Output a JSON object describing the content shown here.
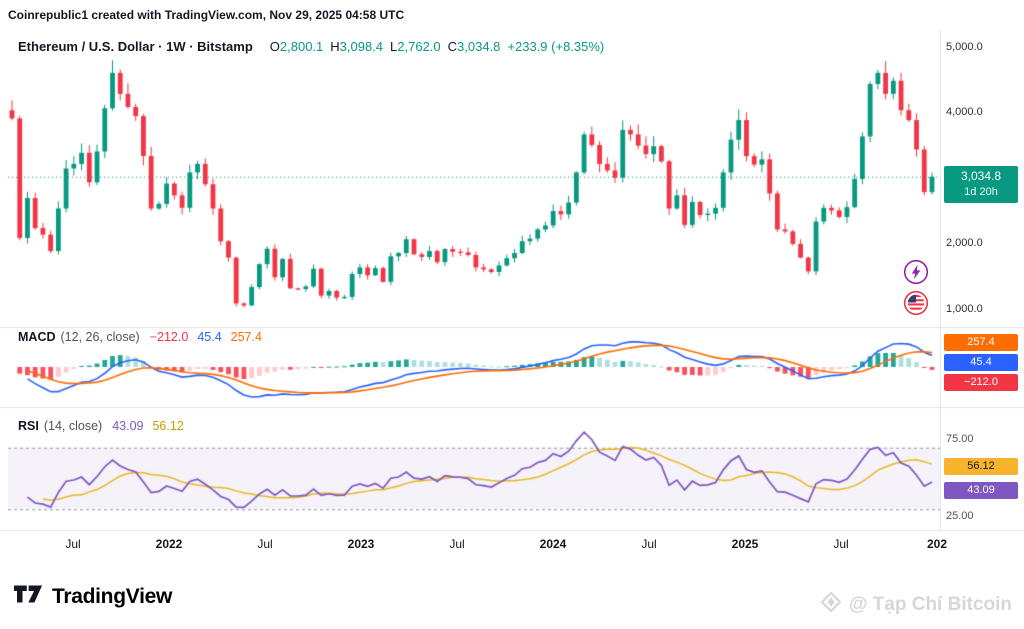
{
  "attribution": "Coinrepublic1 created with TradingView.com, Nov 29, 2025 04:58 UTC",
  "main_chart": {
    "symbol_title": "Ethereum / U.S. Dollar · 1W · Bitstamp",
    "ohlc": {
      "open_label": "O",
      "open": "2,800.1",
      "high_label": "H",
      "high": "3,098.4",
      "low_label": "L",
      "low": "2,762.0",
      "close_label": "C",
      "close": "3,034.8",
      "change": "+233.9 (+8.35%)"
    },
    "price_axis_labels": [
      "5,000.0",
      "4,000.0",
      "2,000.0",
      "1,000.0"
    ],
    "price_badge": {
      "price": "3,034.8",
      "countdown": "1d 20h"
    }
  },
  "macd": {
    "title": "MACD",
    "params": "(12, 26, close)",
    "hist_value": "−212.0",
    "macd_value": "45.4",
    "signal_value": "257.4"
  },
  "rsi": {
    "title": "RSI",
    "params": "(14, close)",
    "rsi_value": "43.09",
    "ma_value": "56.12",
    "axis_labels": [
      "75.00",
      "25.00"
    ]
  },
  "time_axis": {
    "labels": [
      "Jul",
      "2022",
      "Jul",
      "2023",
      "Jul",
      "2024",
      "Jul",
      "2025",
      "Jul",
      "202"
    ]
  },
  "footer": {
    "logo_text": "TradingView",
    "watermark": "@ Tạp Chí Bitcoin"
  },
  "colors": {
    "up": "#089981",
    "down": "#F23645",
    "macd_line": "#2962FF",
    "signal_line": "#FF6D00",
    "hist_pos": "#26A69A",
    "hist_pos_weak": "#B2DFDB",
    "hist_neg": "#F7525F",
    "hist_neg_weak": "#FCCBCD",
    "rsi_line": "#7E57C2",
    "rsi_ma": "#E8B923",
    "band_fill": "rgba(126,87,194,0.08)",
    "separator": "#E0E3EB",
    "price_line": "#089981"
  },
  "chart_data": {
    "type": "candlestick",
    "title": "Ethereum / U.S. Dollar weekly (Bitstamp) with MACD and RSI",
    "symbol": "ETH/USD",
    "timeframe": "1W",
    "x_range": [
      "2021-05",
      "2025-11-29"
    ],
    "x_ticks": [
      "Jul",
      "2022",
      "Jul",
      "2023",
      "Jul",
      "2024",
      "Jul",
      "2025",
      "Jul",
      "202"
    ],
    "price_axis_range": [
      700,
      5100
    ],
    "price_axis_ticks": [
      5000,
      4000,
      3000,
      2000,
      1000
    ],
    "first_open": 4050,
    "closes": [
      3925,
      2100,
      2710,
      2250,
      2150,
      1900,
      2550,
      3160,
      3230,
      3400,
      2950,
      3420,
      4080,
      4620,
      4300,
      4100,
      3960,
      3350,
      2550,
      2620,
      2930,
      2750,
      2560,
      3100,
      3230,
      2920,
      2550,
      2050,
      1800,
      1100,
      1070,
      1350,
      1700,
      1935,
      1500,
      1780,
      1330,
      1320,
      1360,
      1630,
      1220,
      1290,
      1190,
      1200,
      1550,
      1650,
      1530,
      1640,
      1430,
      1820,
      1870,
      2080,
      1850,
      1810,
      1900,
      1730,
      1930,
      1890,
      1880,
      1840,
      1650,
      1620,
      1580,
      1680,
      1790,
      1870,
      2050,
      2090,
      2230,
      2290,
      2510,
      2460,
      2640,
      3100,
      3680,
      3520,
      3230,
      3130,
      3020,
      3750,
      3680,
      3510,
      3380,
      3500,
      3270,
      2550,
      2750,
      2300,
      2650,
      2450,
      2470,
      2560,
      3100,
      3600,
      3900,
      3350,
      3220,
      3300,
      2780,
      2230,
      2200,
      2010,
      1800,
      1590,
      2350,
      2560,
      2520,
      2420,
      2570,
      3000,
      3650,
      4450,
      4620,
      4300,
      4500,
      4050,
      3900,
      3450,
      2800,
      3034.8
    ],
    "last_candle": {
      "open": 2800.1,
      "high": 3098.4,
      "low": 2762.0,
      "close": 3034.8
    },
    "current_price_line": 3034.8,
    "indicators": {
      "macd": {
        "params": [
          12,
          26,
          9
        ],
        "last": {
          "macd": 45.4,
          "signal": 257.4,
          "histogram": -212.0
        }
      },
      "rsi": {
        "params": [
          14
        ],
        "last": {
          "rsi": 43.09,
          "ma": 56.12
        },
        "bands": [
          70,
          30
        ],
        "axis_ticks": [
          75,
          25
        ]
      }
    }
  }
}
